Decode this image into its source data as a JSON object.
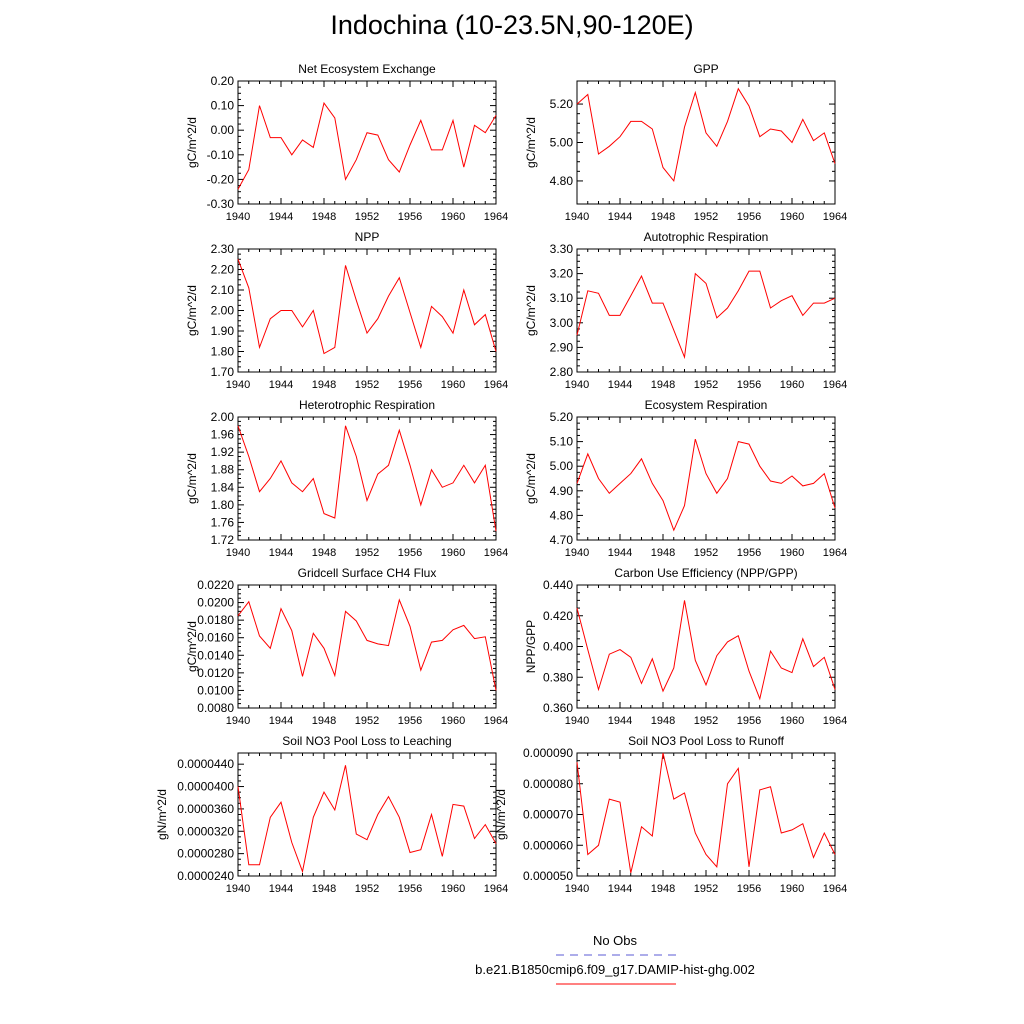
{
  "figure": {
    "title": "Indochina (10-23.5N,90-120E)",
    "legend": {
      "obs_label": "No Obs",
      "obs_color": "#5b5bd6",
      "model_label": "b.e21.B1850cmip6.f09_g17.DAMIP-hist-ghg.002",
      "model_color": "#ff0000"
    }
  },
  "chart_data": [
    {
      "type": "line",
      "title": "Net Ecosystem Exchange",
      "ylabel": "gC/m^2/d",
      "xlim": [
        1940,
        1964
      ],
      "ylim": [
        -0.3,
        0.2
      ],
      "xticks": [
        "1940",
        "1944",
        "1948",
        "1952",
        "1956",
        "1960",
        "1964"
      ],
      "yticks": [
        "-0.30",
        "-0.20",
        "-0.10",
        "0.00",
        "0.10",
        "0.20"
      ],
      "series": [
        {
          "color": "#ff0000",
          "x": [
            1940,
            1941,
            1942,
            1943,
            1944,
            1945,
            1946,
            1947,
            1948,
            1949,
            1950,
            1951,
            1952,
            1953,
            1954,
            1955,
            1956,
            1957,
            1958,
            1959,
            1960,
            1961,
            1962,
            1963,
            1964
          ],
          "values": [
            -0.24,
            -0.16,
            0.1,
            -0.03,
            -0.03,
            -0.1,
            -0.04,
            -0.07,
            0.11,
            0.05,
            -0.2,
            -0.12,
            -0.01,
            -0.02,
            -0.12,
            -0.17,
            -0.06,
            0.04,
            -0.08,
            -0.08,
            0.04,
            -0.15,
            0.02,
            -0.01,
            0.06
          ]
        }
      ]
    },
    {
      "type": "line",
      "title": "GPP",
      "ylabel": "gC/m^2/d",
      "xlim": [
        1940,
        1964
      ],
      "ylim": [
        4.68,
        5.32
      ],
      "xticks": [
        "1940",
        "1944",
        "1948",
        "1952",
        "1956",
        "1960",
        "1964"
      ],
      "yticks": [
        "4.80",
        "5.00",
        "5.20"
      ],
      "series": [
        {
          "color": "#ff0000",
          "x": [
            1940,
            1941,
            1942,
            1943,
            1944,
            1945,
            1946,
            1947,
            1948,
            1949,
            1950,
            1951,
            1952,
            1953,
            1954,
            1955,
            1956,
            1957,
            1958,
            1959,
            1960,
            1961,
            1962,
            1963,
            1964
          ],
          "values": [
            5.2,
            5.25,
            4.94,
            4.98,
            5.03,
            5.11,
            5.11,
            5.07,
            4.87,
            4.8,
            5.08,
            5.26,
            5.05,
            4.98,
            5.11,
            5.28,
            5.19,
            5.03,
            5.07,
            5.06,
            5.0,
            5.12,
            5.01,
            5.05,
            4.89
          ]
        }
      ]
    },
    {
      "type": "line",
      "title": "NPP",
      "ylabel": "gC/m^2/d",
      "xlim": [
        1940,
        1964
      ],
      "ylim": [
        1.7,
        2.3
      ],
      "xticks": [
        "1940",
        "1944",
        "1948",
        "1952",
        "1956",
        "1960",
        "1964"
      ],
      "yticks": [
        "1.70",
        "1.80",
        "1.90",
        "2.00",
        "2.10",
        "2.20",
        "2.30"
      ],
      "series": [
        {
          "color": "#ff0000",
          "x": [
            1940,
            1941,
            1942,
            1943,
            1944,
            1945,
            1946,
            1947,
            1948,
            1949,
            1950,
            1951,
            1952,
            1953,
            1954,
            1955,
            1956,
            1957,
            1958,
            1959,
            1960,
            1961,
            1962,
            1963,
            1964
          ],
          "values": [
            2.25,
            2.11,
            1.82,
            1.96,
            2.0,
            2.0,
            1.92,
            2.0,
            1.79,
            1.82,
            2.22,
            2.05,
            1.89,
            1.96,
            2.07,
            2.16,
            1.99,
            1.82,
            2.02,
            1.97,
            1.89,
            2.1,
            1.93,
            1.98,
            1.8
          ]
        }
      ]
    },
    {
      "type": "line",
      "title": "Autotrophic Respiration",
      "ylabel": "gC/m^2/d",
      "xlim": [
        1940,
        1964
      ],
      "ylim": [
        2.8,
        3.3
      ],
      "xticks": [
        "1940",
        "1944",
        "1948",
        "1952",
        "1956",
        "1960",
        "1964"
      ],
      "yticks": [
        "2.80",
        "2.90",
        "3.00",
        "3.10",
        "3.20",
        "3.30"
      ],
      "series": [
        {
          "color": "#ff0000",
          "x": [
            1940,
            1941,
            1942,
            1943,
            1944,
            1945,
            1946,
            1947,
            1948,
            1949,
            1950,
            1951,
            1952,
            1953,
            1954,
            1955,
            1956,
            1957,
            1958,
            1959,
            1960,
            1961,
            1962,
            1963,
            1964
          ],
          "values": [
            2.95,
            3.13,
            3.12,
            3.03,
            3.03,
            3.11,
            3.19,
            3.08,
            3.08,
            2.97,
            2.86,
            3.2,
            3.16,
            3.02,
            3.06,
            3.13,
            3.21,
            3.21,
            3.06,
            3.09,
            3.11,
            3.03,
            3.08,
            3.08,
            3.1
          ]
        }
      ]
    },
    {
      "type": "line",
      "title": "Heterotrophic Respiration",
      "ylabel": "gC/m^2/d",
      "xlim": [
        1940,
        1964
      ],
      "ylim": [
        1.72,
        2.0
      ],
      "xticks": [
        "1940",
        "1944",
        "1948",
        "1952",
        "1956",
        "1960",
        "1964"
      ],
      "yticks": [
        "1.72",
        "1.76",
        "1.80",
        "1.84",
        "1.88",
        "1.92",
        "1.96",
        "2.00"
      ],
      "series": [
        {
          "color": "#ff0000",
          "x": [
            1940,
            1941,
            1942,
            1943,
            1944,
            1945,
            1946,
            1947,
            1948,
            1949,
            1950,
            1951,
            1952,
            1953,
            1954,
            1955,
            1956,
            1957,
            1958,
            1959,
            1960,
            1961,
            1962,
            1963,
            1964
          ],
          "values": [
            1.98,
            1.91,
            1.83,
            1.86,
            1.9,
            1.85,
            1.83,
            1.86,
            1.78,
            1.77,
            1.98,
            1.91,
            1.81,
            1.87,
            1.89,
            1.97,
            1.89,
            1.8,
            1.88,
            1.84,
            1.85,
            1.89,
            1.85,
            1.89,
            1.74
          ]
        }
      ]
    },
    {
      "type": "line",
      "title": "Ecosystem Respiration",
      "ylabel": "gC/m^2/d",
      "xlim": [
        1940,
        1964
      ],
      "ylim": [
        4.7,
        5.2
      ],
      "xticks": [
        "1940",
        "1944",
        "1948",
        "1952",
        "1956",
        "1960",
        "1964"
      ],
      "yticks": [
        "4.70",
        "4.80",
        "4.90",
        "5.00",
        "5.10",
        "5.20"
      ],
      "series": [
        {
          "color": "#ff0000",
          "x": [
            1940,
            1941,
            1942,
            1943,
            1944,
            1945,
            1946,
            1947,
            1948,
            1949,
            1950,
            1951,
            1952,
            1953,
            1954,
            1955,
            1956,
            1957,
            1958,
            1959,
            1960,
            1961,
            1962,
            1963,
            1964
          ],
          "values": [
            4.93,
            5.05,
            4.95,
            4.89,
            4.93,
            4.97,
            5.03,
            4.93,
            4.86,
            4.74,
            4.84,
            5.11,
            4.97,
            4.89,
            4.95,
            5.1,
            5.09,
            5.0,
            4.94,
            4.93,
            4.96,
            4.92,
            4.93,
            4.97,
            4.83
          ]
        }
      ]
    },
    {
      "type": "line",
      "title": "Gridcell Surface CH4 Flux",
      "ylabel": "gC/m^2/d",
      "xlim": [
        1940,
        1964
      ],
      "ylim": [
        0.008,
        0.022
      ],
      "xticks": [
        "1940",
        "1944",
        "1948",
        "1952",
        "1956",
        "1960",
        "1964"
      ],
      "yticks": [
        "0.0080",
        "0.0100",
        "0.0120",
        "0.0140",
        "0.0160",
        "0.0180",
        "0.0200",
        "0.0220"
      ],
      "series": [
        {
          "color": "#ff0000",
          "x": [
            1940,
            1941,
            1942,
            1943,
            1944,
            1945,
            1946,
            1947,
            1948,
            1949,
            1950,
            1951,
            1952,
            1953,
            1954,
            1955,
            1956,
            1957,
            1958,
            1959,
            1960,
            1961,
            1962,
            1963,
            1964
          ],
          "values": [
            0.0185,
            0.0201,
            0.0162,
            0.0148,
            0.0193,
            0.0168,
            0.0116,
            0.0165,
            0.0148,
            0.0117,
            0.019,
            0.0179,
            0.0157,
            0.0153,
            0.0151,
            0.0203,
            0.0173,
            0.0123,
            0.0155,
            0.0157,
            0.0169,
            0.0174,
            0.0159,
            0.0161,
            0.01
          ]
        }
      ]
    },
    {
      "type": "line",
      "title": "Carbon Use Efficiency (NPP/GPP)",
      "ylabel": "NPP/GPP",
      "xlim": [
        1940,
        1964
      ],
      "ylim": [
        0.36,
        0.44
      ],
      "xticks": [
        "1940",
        "1944",
        "1948",
        "1952",
        "1956",
        "1960",
        "1964"
      ],
      "yticks": [
        "0.360",
        "0.380",
        "0.400",
        "0.420",
        "0.440"
      ],
      "series": [
        {
          "color": "#ff0000",
          "x": [
            1940,
            1941,
            1942,
            1943,
            1944,
            1945,
            1946,
            1947,
            1948,
            1949,
            1950,
            1951,
            1952,
            1953,
            1954,
            1955,
            1956,
            1957,
            1958,
            1959,
            1960,
            1961,
            1962,
            1963,
            1964
          ],
          "values": [
            0.425,
            0.398,
            0.372,
            0.395,
            0.398,
            0.393,
            0.376,
            0.392,
            0.371,
            0.386,
            0.43,
            0.391,
            0.375,
            0.394,
            0.403,
            0.407,
            0.384,
            0.366,
            0.397,
            0.386,
            0.383,
            0.405,
            0.387,
            0.393,
            0.372
          ]
        }
      ]
    },
    {
      "type": "line",
      "title": "Soil NO3 Pool Loss to Leaching",
      "ylabel": "gN/m^2/d",
      "xlim": [
        1940,
        1964
      ],
      "ylim": [
        2.4e-05,
        4.6e-05
      ],
      "xticks": [
        "1940",
        "1944",
        "1948",
        "1952",
        "1956",
        "1960",
        "1964"
      ],
      "yticks": [
        "0.0000240",
        "0.0000280",
        "0.0000320",
        "0.0000360",
        "0.0000400",
        "0.0000440"
      ],
      "series": [
        {
          "color": "#ff0000",
          "x": [
            1940,
            1941,
            1942,
            1943,
            1944,
            1945,
            1946,
            1947,
            1948,
            1949,
            1950,
            1951,
            1952,
            1953,
            1954,
            1955,
            1956,
            1957,
            1958,
            1959,
            1960,
            1961,
            1962,
            1963,
            1964
          ],
          "values": [
            4e-05,
            2.6e-05,
            2.6e-05,
            3.45e-05,
            3.72e-05,
            3e-05,
            2.48e-05,
            3.45e-05,
            3.9e-05,
            3.58e-05,
            4.38e-05,
            3.15e-05,
            3.05e-05,
            3.5e-05,
            3.82e-05,
            3.45e-05,
            2.82e-05,
            2.87e-05,
            3.5e-05,
            2.75e-05,
            3.68e-05,
            3.65e-05,
            3.07e-05,
            3.32e-05,
            2.98e-05
          ]
        }
      ]
    },
    {
      "type": "line",
      "title": "Soil NO3 Pool Loss to Runoff",
      "ylabel": "gN/m^2/d",
      "xlim": [
        1940,
        1964
      ],
      "ylim": [
        5e-05,
        9e-05
      ],
      "xticks": [
        "1940",
        "1944",
        "1948",
        "1952",
        "1956",
        "1960",
        "1964"
      ],
      "yticks": [
        "0.000050",
        "0.000060",
        "0.000070",
        "0.000080",
        "0.000090"
      ],
      "series": [
        {
          "color": "#ff0000",
          "x": [
            1940,
            1941,
            1942,
            1943,
            1944,
            1945,
            1946,
            1947,
            1948,
            1949,
            1950,
            1951,
            1952,
            1953,
            1954,
            1955,
            1956,
            1957,
            1958,
            1959,
            1960,
            1961,
            1962,
            1963,
            1964
          ],
          "values": [
            8.7e-05,
            5.7e-05,
            6e-05,
            7.5e-05,
            7.4e-05,
            5.1e-05,
            6.6e-05,
            6.3e-05,
            9e-05,
            7.5e-05,
            7.7e-05,
            6.4e-05,
            5.7e-05,
            5.3e-05,
            8e-05,
            8.5e-05,
            5.3e-05,
            7.8e-05,
            7.9e-05,
            6.4e-05,
            6.5e-05,
            6.7e-05,
            5.6e-05,
            6.4e-05,
            5.7e-05
          ]
        }
      ]
    }
  ]
}
